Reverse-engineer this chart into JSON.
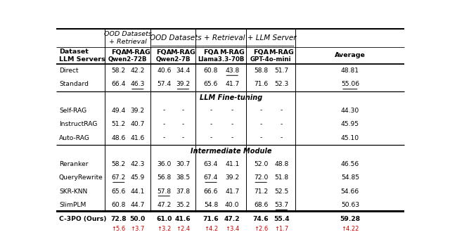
{
  "section_direct_standard": {
    "rows": [
      {
        "name": "Direct",
        "vals": [
          "58.2",
          "42.2",
          "40.6",
          "34.4",
          "60.8",
          "43.8",
          "58.8",
          "51.7",
          "48.81"
        ],
        "underline": [
          false,
          false,
          false,
          false,
          false,
          true,
          false,
          false,
          false
        ]
      },
      {
        "name": "Standard",
        "vals": [
          "66.4",
          "46.3",
          "57.4",
          "39.2",
          "65.6",
          "41.7",
          "71.6",
          "52.3",
          "55.06"
        ],
        "underline": [
          false,
          true,
          false,
          true,
          false,
          false,
          false,
          false,
          true
        ]
      }
    ]
  },
  "section_llm": {
    "title": "LLM Fine-tuning",
    "rows": [
      {
        "name": "Self-RAG",
        "vals": [
          "49.4",
          "39.2",
          "-",
          "-",
          "-",
          "-",
          "-",
          "-",
          "44.30"
        ]
      },
      {
        "name": "InstructRAG",
        "vals": [
          "51.2",
          "40.7",
          "-",
          "-",
          "-",
          "-",
          "-",
          "-",
          "45.95"
        ]
      },
      {
        "name": "Auto-RAG",
        "vals": [
          "48.6",
          "41.6",
          "-",
          "-",
          "-",
          "-",
          "-",
          "-",
          "45.10"
        ]
      }
    ]
  },
  "section_intermediate": {
    "title": "Intermediate Module",
    "rows": [
      {
        "name": "Reranker",
        "vals": [
          "58.2",
          "42.3",
          "36.0",
          "30.7",
          "63.4",
          "41.1",
          "52.0",
          "48.8",
          "46.56"
        ],
        "underline": [
          false,
          false,
          false,
          false,
          false,
          false,
          false,
          false,
          false
        ]
      },
      {
        "name": "QueryRewrite",
        "vals": [
          "67.2",
          "45.9",
          "56.8",
          "38.5",
          "67.4",
          "39.2",
          "72.0",
          "51.8",
          "54.85"
        ],
        "underline": [
          true,
          false,
          false,
          false,
          true,
          false,
          true,
          false,
          false
        ]
      },
      {
        "name": "SKR-KNN",
        "vals": [
          "65.6",
          "44.1",
          "57.8",
          "37.8",
          "66.6",
          "41.7",
          "71.2",
          "52.5",
          "54.66"
        ],
        "underline": [
          false,
          false,
          true,
          false,
          false,
          false,
          false,
          false,
          false
        ]
      },
      {
        "name": "SlimPLM",
        "vals": [
          "60.8",
          "44.7",
          "47.2",
          "35.2",
          "54.8",
          "40.0",
          "68.6",
          "53.7",
          "50.63"
        ],
        "underline": [
          false,
          false,
          false,
          false,
          false,
          false,
          false,
          true,
          false
        ]
      }
    ]
  },
  "section_ours": {
    "name": "C-3PO (Ours)",
    "vals": [
      "72.8",
      "50.0",
      "61.0",
      "41.6",
      "71.6",
      "47.2",
      "74.6",
      "55.4",
      "59.28"
    ],
    "arrows": [
      "↑5.6",
      "↑3.7",
      "↑3.2",
      "↑2.4",
      "↑4.2",
      "↑3.4",
      "↑2.6",
      "↑1.7",
      "↑4.22"
    ]
  },
  "bg_color_ours": "#daeaf6",
  "text_color_arrow": "#cc0000",
  "fig_width": 6.4,
  "fig_height": 3.37
}
